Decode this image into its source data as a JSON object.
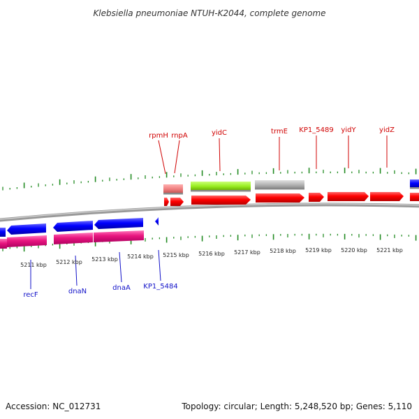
{
  "title": "Klebsiella pneumoniae NTUH-K2044, complete genome",
  "footer": {
    "accession": "Accession: NC_012731",
    "topology": "Topology: circular; Length: 5,248,520 bp; Genes: 5,110"
  },
  "colors": {
    "cds_top": "#ff0000",
    "cds_bottom": "#0000ff",
    "gene_bottom": "#e8157f",
    "rrna_green": "#99ee22",
    "misc_gray": "#b8b8b8",
    "pink_gene": "#f08080",
    "backbone": "#888888",
    "ticks": "#228b22",
    "label_top": "#d00000",
    "label_bottom": "#1010c8"
  },
  "top_labels": [
    "rpmH",
    "rnpA",
    "yidC",
    "trmE",
    "KP1_5489",
    "yidY",
    "yidZ"
  ],
  "bottom_labels": [
    "recF",
    "dnaN",
    "dnaA",
    "KP1_5484"
  ],
  "scale_labels": [
    "5211 kbp",
    "5212 kbp",
    "5213 kbp",
    "5214 kbp",
    "5215 kbp",
    "5216 kbp",
    "5217 kbp",
    "5218 kbp",
    "5219 kbp",
    "5220 kbp",
    "5221 kbp"
  ]
}
